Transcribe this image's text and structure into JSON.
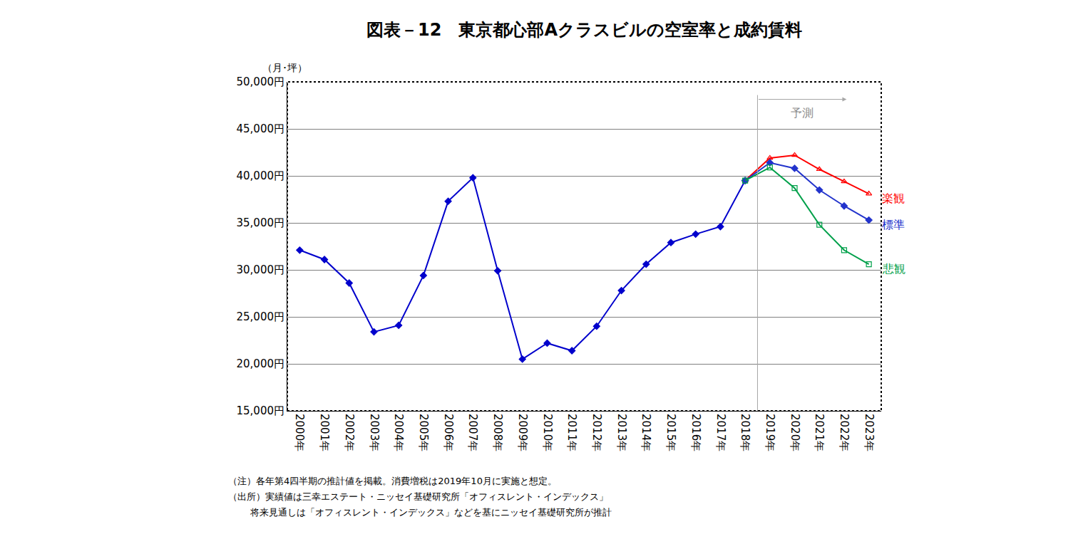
{
  "chart_data": {
    "type": "line",
    "title": "図表－12　東京都心部Aクラスビルの空室率と成約賃料",
    "y_label": "（月･坪）",
    "categories": [
      "2000年",
      "2001年",
      "2002年",
      "2003年",
      "2004年",
      "2005年",
      "2006年",
      "2007年",
      "2008年",
      "2009年",
      "2010年",
      "2011年",
      "2012年",
      "2013年",
      "2014年",
      "2015年",
      "2016年",
      "2017年",
      "2018年",
      "2019年",
      "2020年",
      "2021年",
      "2022年",
      "2023年"
    ],
    "series": [
      {
        "color": "#0000cc",
        "marker": "diamond",
        "values": [
          32100,
          31100,
          28600,
          23400,
          24100,
          29400,
          37300,
          39800,
          29900,
          20500,
          22200,
          21400,
          24000,
          27800,
          30600,
          32900,
          33800,
          34600,
          39500,
          null,
          null,
          null,
          null,
          null
        ]
      },
      {
        "name": "楽観",
        "color": "#ff0000",
        "marker": "triangle-up-open",
        "values": [
          null,
          null,
          null,
          null,
          null,
          null,
          null,
          null,
          null,
          null,
          null,
          null,
          null,
          null,
          null,
          null,
          null,
          null,
          39500,
          41900,
          42200,
          40700,
          39400,
          38100
        ]
      },
      {
        "name": "標準",
        "color": "#2233cc",
        "marker": "diamond",
        "values": [
          null,
          null,
          null,
          null,
          null,
          null,
          null,
          null,
          null,
          null,
          null,
          null,
          null,
          null,
          null,
          null,
          null,
          null,
          39500,
          41400,
          40800,
          38500,
          36800,
          35300
        ]
      },
      {
        "name": "悲観",
        "color": "#00a04a",
        "marker": "square-open",
        "values": [
          null,
          null,
          null,
          null,
          null,
          null,
          null,
          null,
          null,
          null,
          null,
          null,
          null,
          null,
          null,
          null,
          null,
          null,
          39500,
          40900,
          38700,
          34800,
          32100,
          30600
        ]
      }
    ],
    "ylim": [
      15000,
      50000
    ],
    "yticks": [
      {
        "value": 15000,
        "label": "15,000円"
      },
      {
        "value": 20000,
        "label": "20,000円"
      },
      {
        "value": 25000,
        "label": "25,000円"
      },
      {
        "value": 30000,
        "label": "30,000円"
      },
      {
        "value": 35000,
        "label": "35,000円"
      },
      {
        "value": 40000,
        "label": "40,000円"
      },
      {
        "value": 45000,
        "label": "45,000円"
      },
      {
        "value": 50000,
        "label": "50,000円"
      }
    ],
    "grid": true,
    "annotations": [
      {
        "text": "予測"
      }
    ],
    "notes": [
      "（注）各年第4四半期の推計値を掲載。消費増税は2019年10月に実施と想定。",
      "（出所）実績値は三幸エステート・ニッセイ基礎研究所「オフィスレント・インデックス」",
      "将来見通しは「オフィスレント・インデックス」などを基にニッセイ基礎研究所が推計"
    ]
  }
}
